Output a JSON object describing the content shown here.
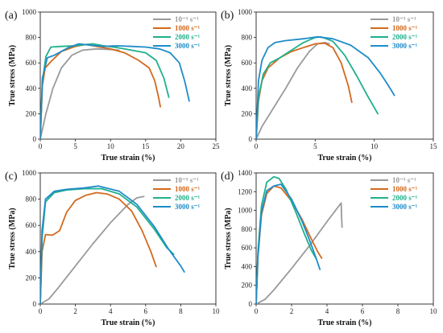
{
  "colors": {
    "quasi_static": "#9a9a9a",
    "s1000": "#d2691e",
    "s2000": "#1fb08c",
    "s3000": "#1f8cc8"
  },
  "chart_data": [
    {
      "type": "line",
      "panel_label": "(a)",
      "xlabel": "True strain (%)",
      "ylabel": "True stress (MPa)",
      "xlim": [
        0,
        25
      ],
      "ylim": [
        0,
        1000
      ],
      "xticks": [
        "0",
        "5",
        "10",
        "15",
        "20",
        "25"
      ],
      "yticks": [
        "0",
        "200",
        "400",
        "600",
        "800",
        "1000"
      ],
      "legend_position": "top-right",
      "series": [
        {
          "name": "10⁻³ s⁻¹",
          "color": "#9a9a9a",
          "x": [
            0,
            0.8,
            1.8,
            3,
            4.5,
            6,
            8,
            10,
            11.2
          ],
          "y": [
            0,
            200,
            400,
            560,
            660,
            700,
            710,
            705,
            700
          ]
        },
        {
          "name": "1000 s⁻¹",
          "color": "#d2691e",
          "x": [
            0,
            0.3,
            0.7,
            1.5,
            3,
            5,
            6.5,
            8,
            10,
            12,
            14,
            15.5,
            16.3,
            16.8,
            17.1
          ],
          "y": [
            0,
            420,
            560,
            610,
            690,
            730,
            745,
            730,
            710,
            680,
            620,
            560,
            460,
            340,
            255
          ]
        },
        {
          "name": "2000 s⁻¹",
          "color": "#1fb08c",
          "x": [
            0,
            0.3,
            0.8,
            1.5,
            3,
            5,
            6.5,
            7.5,
            9,
            11,
            13,
            15,
            16.5,
            17.6,
            18.3
          ],
          "y": [
            0,
            450,
            650,
            725,
            730,
            735,
            745,
            750,
            735,
            720,
            700,
            680,
            620,
            480,
            330
          ]
        },
        {
          "name": "3000 s⁻¹",
          "color": "#1f8cc8",
          "x": [
            0,
            0.3,
            1,
            2,
            4,
            5.5,
            7,
            9,
            11,
            13,
            15,
            17,
            18.5,
            19.8,
            20.6,
            21.2
          ],
          "y": [
            0,
            480,
            640,
            660,
            720,
            750,
            740,
            730,
            735,
            730,
            725,
            710,
            680,
            600,
            450,
            300
          ]
        }
      ]
    },
    {
      "type": "line",
      "panel_label": "(b)",
      "xlabel": "True strain (%)",
      "ylabel": "True stress (MPa)",
      "xlim": [
        0,
        15
      ],
      "ylim": [
        0,
        1000
      ],
      "xticks": [
        "0",
        "5",
        "10",
        "15"
      ],
      "yticks": [
        "0",
        "200",
        "400",
        "600",
        "800",
        "1000"
      ],
      "legend_position": "top-right",
      "series": [
        {
          "name": "10⁻³ s⁻¹",
          "color": "#9a9a9a",
          "x": [
            0,
            0.5,
            1.5,
            2.5,
            3.5,
            4.5,
            5.2,
            5.8,
            6.2
          ],
          "y": [
            0,
            100,
            250,
            400,
            560,
            690,
            750,
            760,
            750
          ]
        },
        {
          "name": "1000 s⁻¹",
          "color": "#d2691e",
          "x": [
            0,
            0.2,
            0.5,
            1,
            2,
            3,
            4,
            5,
            5.8,
            6.5,
            7.2,
            7.8,
            8.1
          ],
          "y": [
            0,
            300,
            460,
            560,
            640,
            690,
            720,
            750,
            755,
            720,
            600,
            420,
            290
          ]
        },
        {
          "name": "2000 s⁻¹",
          "color": "#1fb08c",
          "x": [
            0,
            0.2,
            0.6,
            1.2,
            2,
            3,
            4,
            5,
            5.5,
            6.5,
            7.5,
            8.5,
            9.5,
            10.3
          ],
          "y": [
            0,
            330,
            510,
            600,
            640,
            700,
            760,
            800,
            805,
            770,
            660,
            500,
            330,
            200
          ]
        },
        {
          "name": "3000 s⁻¹",
          "color": "#1f8cc8",
          "x": [
            0,
            0.2,
            0.5,
            1,
            1.6,
            2.5,
            4,
            5.2,
            6.5,
            8,
            9.5,
            10.5,
            11.2,
            11.7
          ],
          "y": [
            0,
            460,
            620,
            720,
            760,
            775,
            790,
            805,
            790,
            740,
            640,
            520,
            420,
            345
          ]
        }
      ]
    },
    {
      "type": "line",
      "panel_label": "(c)",
      "xlabel": "True strain (%)",
      "ylabel": "True stress (MPa)",
      "xlim": [
        0,
        10
      ],
      "ylim": [
        0,
        1000
      ],
      "xticks": [
        "0",
        "2",
        "4",
        "6",
        "8",
        "10"
      ],
      "yticks": [
        "0",
        "200",
        "400",
        "600",
        "800",
        "1000"
      ],
      "legend_position": "top-right",
      "series": [
        {
          "name": "10⁻³ s⁻¹",
          "color": "#9a9a9a",
          "x": [
            0,
            0.5,
            1,
            2,
            3,
            4,
            5,
            5.5,
            5.9
          ],
          "y": [
            0,
            40,
            120,
            290,
            460,
            620,
            760,
            810,
            820
          ]
        },
        {
          "name": "1000 s⁻¹",
          "color": "#d2691e",
          "x": [
            0,
            0.1,
            0.3,
            0.7,
            1.1,
            1.5,
            2,
            2.6,
            3.2,
            3.8,
            4.5,
            5.2,
            5.8,
            6.3,
            6.6
          ],
          "y": [
            0,
            400,
            530,
            525,
            560,
            700,
            790,
            830,
            850,
            840,
            800,
            710,
            560,
            400,
            285
          ]
        },
        {
          "name": "2000 s⁻¹",
          "color": "#1fb08c",
          "x": [
            0,
            0.1,
            0.3,
            0.8,
            1.5,
            2.5,
            3.5,
            4.5,
            5.5,
            6.5,
            7.2,
            7.6
          ],
          "y": [
            0,
            500,
            780,
            850,
            870,
            880,
            880,
            840,
            740,
            570,
            430,
            380
          ]
        },
        {
          "name": "3000 s⁻¹",
          "color": "#1f8cc8",
          "x": [
            0,
            0.1,
            0.3,
            0.8,
            1.5,
            2.5,
            3.3,
            4.5,
            5.5,
            6.5,
            7.3,
            8,
            8.2
          ],
          "y": [
            0,
            560,
            800,
            860,
            875,
            885,
            900,
            860,
            760,
            590,
            420,
            290,
            245
          ]
        }
      ]
    },
    {
      "type": "line",
      "panel_label": "(d)",
      "xlabel": "True strain (%)",
      "ylabel": "True stress (MPa)",
      "xlim": [
        0,
        10
      ],
      "ylim": [
        0,
        1400
      ],
      "xticks": [
        "0",
        "2",
        "4",
        "6",
        "8",
        "10"
      ],
      "yticks": [
        "0",
        "200",
        "400",
        "600",
        "800",
        "1000",
        "1200",
        "1400"
      ],
      "legend_position": "top-right",
      "series": [
        {
          "name": "10⁻³ s⁻¹",
          "color": "#9a9a9a",
          "x": [
            0,
            0.5,
            1,
            2,
            3,
            4,
            4.8,
            4.82,
            4.85
          ],
          "y": [
            0,
            50,
            150,
            380,
            620,
            880,
            1080,
            950,
            820
          ]
        },
        {
          "name": "1000 s⁻¹",
          "color": "#d2691e",
          "x": [
            0,
            0.1,
            0.3,
            0.6,
            1,
            1.4,
            2,
            2.6,
            3.1,
            3.5,
            3.7
          ],
          "y": [
            0,
            500,
            950,
            1180,
            1260,
            1240,
            1100,
            900,
            700,
            550,
            490
          ]
        },
        {
          "name": "2000 s⁻¹",
          "color": "#1fb08c",
          "x": [
            0,
            0.1,
            0.3,
            0.6,
            1,
            1.3,
            1.7,
            2.2,
            2.7,
            3.1,
            3.4
          ],
          "y": [
            0,
            550,
            1050,
            1300,
            1360,
            1340,
            1220,
            1000,
            760,
            580,
            480
          ]
        },
        {
          "name": "3000 s⁻¹",
          "color": "#1f8cc8",
          "x": [
            0,
            0.1,
            0.3,
            0.6,
            1,
            1.4,
            2,
            2.6,
            3.1,
            3.4,
            3.6
          ],
          "y": [
            0,
            500,
            980,
            1210,
            1260,
            1280,
            1120,
            880,
            640,
            480,
            370
          ]
        }
      ]
    }
  ]
}
